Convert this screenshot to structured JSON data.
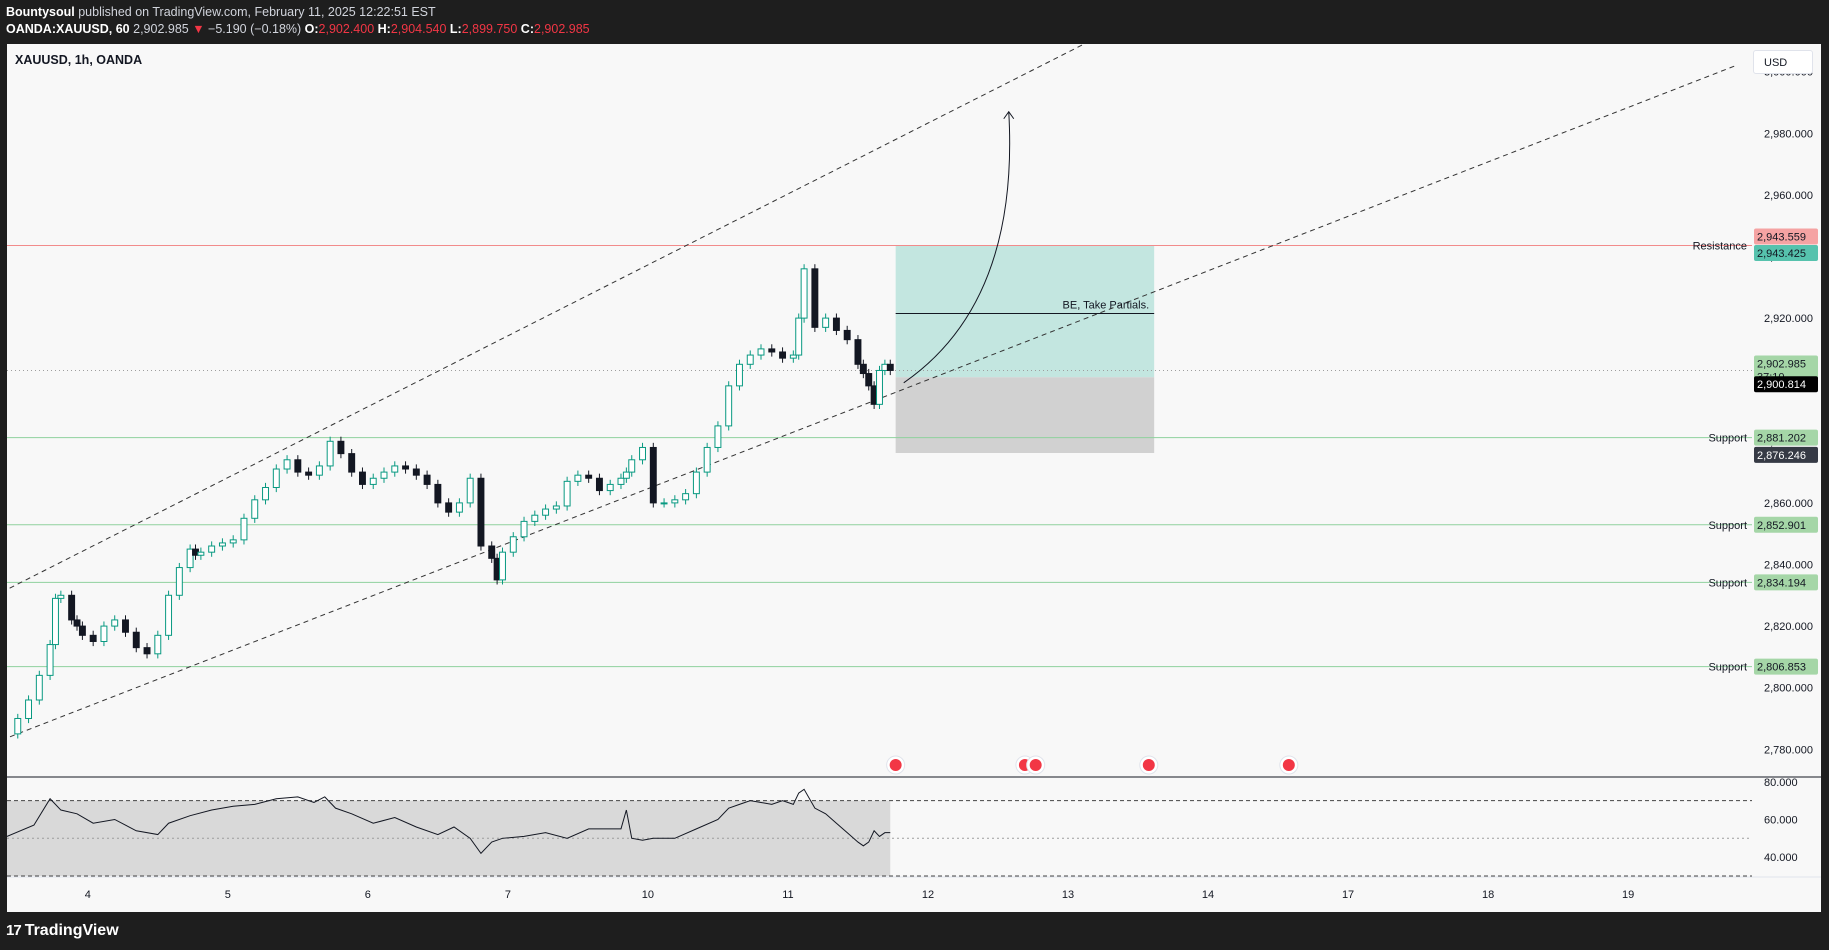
{
  "header": {
    "line1": {
      "author": "Bountysoul",
      "rest": " published on TradingView.com, February 11, 2025 12:22:51 EST"
    },
    "line2": {
      "symbol": "OANDA:XAUUSD, 60",
      "last": " 2,902.985 ",
      "down_arrow": "▼",
      "change": " −5.190 (−0.18%) ",
      "o_label": "O:",
      "o_val": "2,902.400",
      "h_label": " H:",
      "h_val": "2,904.540",
      "l_label": " L:",
      "l_val": "2,899.750",
      "c_label": " C:",
      "c_val": "2,902.985"
    }
  },
  "symbol_title": "XAUUSD, 1h, OANDA",
  "currency": "USD",
  "branding": {
    "logo": "TradingView",
    "logo_glyph": "17"
  },
  "colors": {
    "up": "#089981",
    "down": "#131722",
    "resistance": "#f28b8b",
    "support": "#8fd19e",
    "target_zone": "#b2e0d8",
    "stop_zone": "#d1d1d1"
  },
  "annotation": {
    "text": "BE, Take Partials."
  },
  "chart_data": [
    {
      "type": "candlestick",
      "title": "XAUUSD, 1h, OANDA",
      "y_axis": {
        "ticks": [
          2780,
          2800,
          2820,
          2840,
          2860,
          2880,
          2900,
          2920,
          2940,
          2960,
          2980,
          3000
        ],
        "tick_labels": [
          "2,780.000",
          "2,800.000",
          "2,820.000",
          "2,840.000",
          "2,860.000",
          "2,880.000",
          "2,900.000",
          "2,920.000",
          "2,940.000",
          "2,960.000",
          "2,980.000",
          "3,000.000"
        ],
        "range": [
          2771,
          3009
        ]
      },
      "x_axis": {
        "tick_labels": [
          "4",
          "5",
          "6",
          "7",
          "10",
          "11",
          "12",
          "13",
          "14",
          "17",
          "18",
          "19"
        ],
        "tick_hours": [
          15,
          41,
          67,
          93,
          119,
          145,
          171,
          197,
          223,
          249,
          275,
          301
        ],
        "range_hours": [
          0,
          324
        ]
      },
      "close_series": {
        "x_hours": [
          0,
          2,
          4,
          6,
          8,
          9,
          10,
          12,
          13,
          14,
          16,
          18,
          20,
          22,
          24,
          26,
          28,
          30,
          32,
          34,
          35,
          36,
          38,
          40,
          42,
          44,
          46,
          48,
          50,
          52,
          54,
          56,
          58,
          60,
          62,
          64,
          66,
          68,
          70,
          72,
          74,
          76,
          78,
          80,
          82,
          84,
          86,
          88,
          90,
          91,
          92,
          94,
          96,
          98,
          100,
          102,
          104,
          106,
          108,
          110,
          112,
          114,
          115,
          116,
          118,
          120,
          122,
          124,
          126,
          128,
          130,
          132,
          134,
          136,
          138,
          140,
          142,
          144,
          146,
          147,
          148,
          150,
          152,
          154,
          156,
          158,
          159,
          160,
          161,
          162,
          163,
          164
        ],
        "close": [
          2785,
          2790,
          2796,
          2804,
          2814,
          2829,
          2830,
          2822,
          2820,
          2817,
          2815,
          2820,
          2822,
          2818,
          2813,
          2811,
          2817,
          2830,
          2839,
          2845,
          2843,
          2844,
          2846,
          2847,
          2848,
          2855,
          2861,
          2865,
          2871,
          2874,
          2870,
          2869,
          2872,
          2880,
          2876,
          2870,
          2866,
          2868,
          2870,
          2872,
          2871,
          2869,
          2866,
          2860,
          2857,
          2860,
          2868,
          2846,
          2842,
          2835,
          2844,
          2849,
          2854,
          2856,
          2858,
          2859,
          2867,
          2869,
          2868,
          2864,
          2866,
          2868,
          2870,
          2874,
          2878,
          2860,
          2860,
          2861,
          2863,
          2870,
          2878,
          2885,
          2898,
          2905,
          2908,
          2910,
          2909,
          2907,
          2908,
          2920,
          2936,
          2917,
          2920,
          2916,
          2913,
          2905,
          2902,
          2898,
          2892,
          2903,
          2905,
          2903
        ]
      },
      "horizontal_levels": [
        {
          "label": "Resistance",
          "price": 2943.559,
          "price_label": "2,943.559"
        },
        {
          "label": "",
          "price": 2943.425,
          "price_label": "2,943.425"
        },
        {
          "label": "Support",
          "price": 2881.202,
          "price_label": "2,881.202"
        },
        {
          "label": "Support",
          "price": 2852.901,
          "price_label": "2,852.901"
        },
        {
          "label": "Support",
          "price": 2834.194,
          "price_label": "2,834.194"
        },
        {
          "label": "Support",
          "price": 2806.853,
          "price_label": "2,806.853"
        }
      ],
      "last_price": {
        "price": 2902.985,
        "label": "2,902.985",
        "countdown": "37:10"
      },
      "crosshair_labels": [
        {
          "price": 2900.814,
          "label": "2,900.814"
        },
        {
          "price": 2876.246,
          "label": "2,876.246"
        }
      ],
      "position": {
        "entry": 2900.8,
        "target": 2943.5,
        "stop": 2876.2,
        "be_level": 2921.5,
        "x_from_hours": 165,
        "x_to_hours": 213
      },
      "channel": {
        "upper": [
          [
            -1,
            2831
          ],
          [
            200,
            3009
          ]
        ],
        "lower": [
          [
            -1,
            2783
          ],
          [
            321,
            3002
          ]
        ]
      },
      "event_markers": {
        "x_hours": [
          165,
          189,
          191,
          212,
          238
        ]
      }
    },
    {
      "type": "line",
      "indicator": "RSI",
      "y_axis": {
        "ticks": [
          40,
          60,
          80
        ],
        "tick_labels": [
          "40.000",
          "60.000",
          "80.000"
        ],
        "range": [
          30,
          82
        ],
        "band": [
          30,
          70
        ],
        "mid": 50
      },
      "x_hours": [
        0,
        5,
        8,
        10,
        13,
        16,
        20,
        24,
        28,
        30,
        34,
        38,
        42,
        46,
        50,
        54,
        57,
        59,
        61,
        64,
        68,
        72,
        76,
        80,
        83,
        86,
        88,
        90,
        92,
        96,
        100,
        104,
        108,
        112,
        114,
        115,
        116,
        118,
        120,
        124,
        128,
        132,
        134,
        136,
        138,
        140,
        142,
        144,
        146,
        147,
        148,
        150,
        152,
        154,
        156,
        158,
        159,
        160,
        161,
        162,
        163,
        164
      ],
      "values": [
        51,
        57,
        71,
        65,
        63,
        58,
        60,
        54,
        52,
        58,
        62,
        65,
        67,
        68,
        71,
        72,
        69,
        72,
        66,
        63,
        58,
        61,
        56,
        52,
        56,
        50,
        42,
        48,
        50,
        51,
        53,
        50,
        55,
        55,
        55,
        65,
        50,
        49,
        50,
        50,
        55,
        60,
        66,
        68,
        70,
        69,
        68,
        70,
        68,
        74,
        76,
        66,
        63,
        58,
        53,
        48,
        46,
        48,
        54,
        51,
        53,
        53
      ]
    }
  ]
}
